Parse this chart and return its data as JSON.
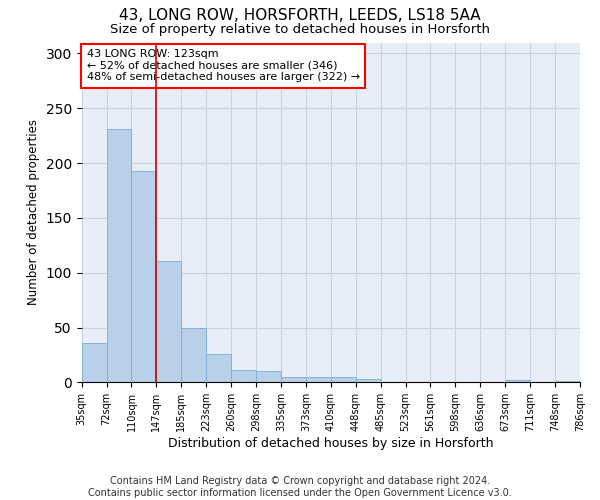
{
  "title1": "43, LONG ROW, HORSFORTH, LEEDS, LS18 5AA",
  "title2": "Size of property relative to detached houses in Horsforth",
  "xlabel": "Distribution of detached houses by size in Horsforth",
  "ylabel": "Number of detached properties",
  "bar_values": [
    36,
    231,
    193,
    111,
    50,
    26,
    11,
    10,
    5,
    5,
    5,
    3,
    0,
    0,
    0,
    0,
    0,
    2,
    0,
    1
  ],
  "categories": [
    "35sqm",
    "72sqm",
    "110sqm",
    "147sqm",
    "185sqm",
    "223sqm",
    "260sqm",
    "298sqm",
    "335sqm",
    "373sqm",
    "410sqm",
    "448sqm",
    "485sqm",
    "523sqm",
    "561sqm",
    "598sqm",
    "636sqm",
    "673sqm",
    "711sqm",
    "748sqm",
    "786sqm"
  ],
  "bar_color": "#b8d0e8",
  "bar_edge_color": "#7aafd4",
  "grid_color": "#c8d4e4",
  "background_color": "#e8eef6",
  "vline_color": "#cc0000",
  "vline_position": 2.5,
  "annotation_text": "43 LONG ROW: 123sqm\n← 52% of detached houses are smaller (346)\n48% of semi-detached houses are larger (322) →",
  "ylim": [
    0,
    310
  ],
  "yticks": [
    0,
    50,
    100,
    150,
    200,
    250,
    300
  ],
  "footer": "Contains HM Land Registry data © Crown copyright and database right 2024.\nContains public sector information licensed under the Open Government Licence v3.0.",
  "title1_fontsize": 11,
  "title2_fontsize": 9.5,
  "annotation_fontsize": 8,
  "footer_fontsize": 7,
  "ylabel_fontsize": 8.5,
  "xlabel_fontsize": 9,
  "tick_fontsize": 7
}
